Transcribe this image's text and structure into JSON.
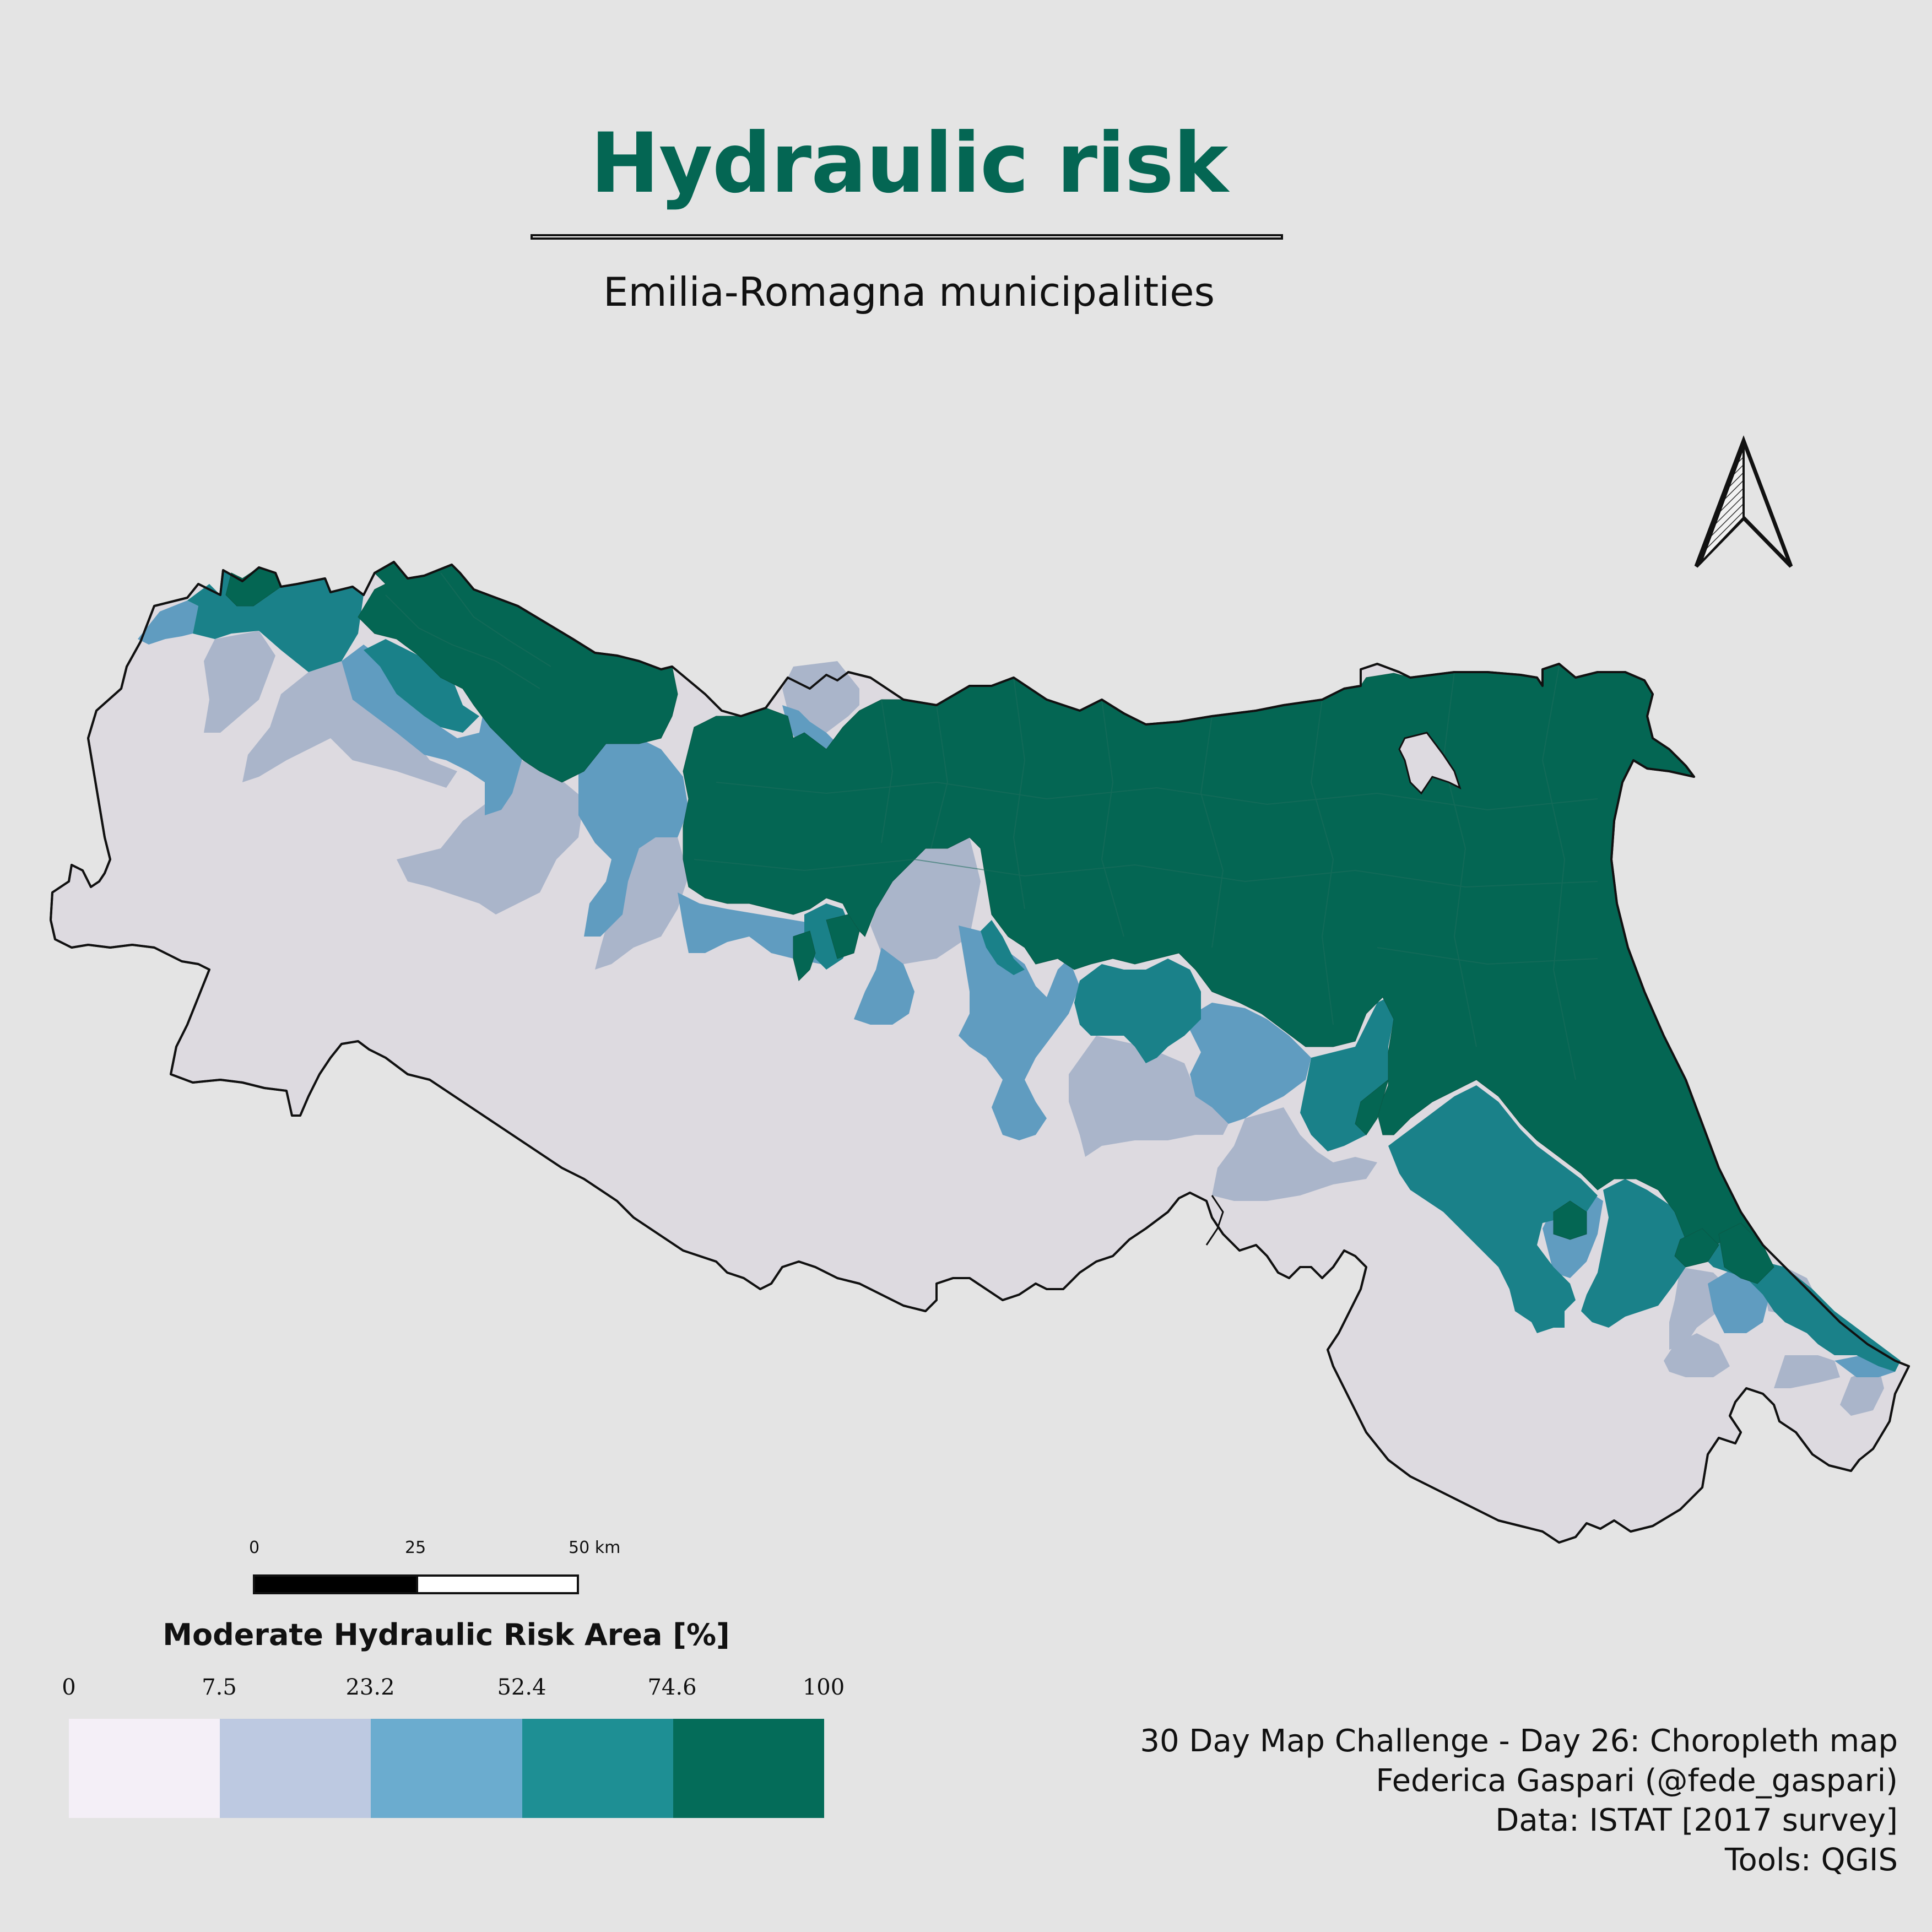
{
  "map": {
    "title": "Hydraulic risk",
    "subtitle": "Emilia-Romagna municipalities",
    "region": "Emilia-Romagna",
    "colors": {
      "background": "#e4e4e4",
      "title": "#046653",
      "class_0": "#dddae0",
      "class_1": "#aab5ca",
      "class_2": "#609cc0",
      "class_3": "#1a8189",
      "class_4": "#046653"
    }
  },
  "scale_bar": {
    "labels": [
      "0",
      "25",
      "50 km"
    ]
  },
  "legend": {
    "title": "Moderate Hydraulic Risk Area [%]",
    "breaks": [
      "0",
      "7.5",
      "23.2",
      "52.4",
      "74.6",
      "100"
    ],
    "colors": [
      "#f4eff7",
      "#bdc9e1",
      "#6baccf",
      "#1e8f94",
      "#046c59"
    ]
  },
  "north_arrow": {
    "icon": "north-arrow-icon"
  },
  "credits": [
    "30 Day Map Challenge - Day 26: Choropleth map",
    "Federica Gaspari (@fede_gaspari)",
    "Data: ISTAT [2017 survey]",
    "Tools: QGIS"
  ]
}
